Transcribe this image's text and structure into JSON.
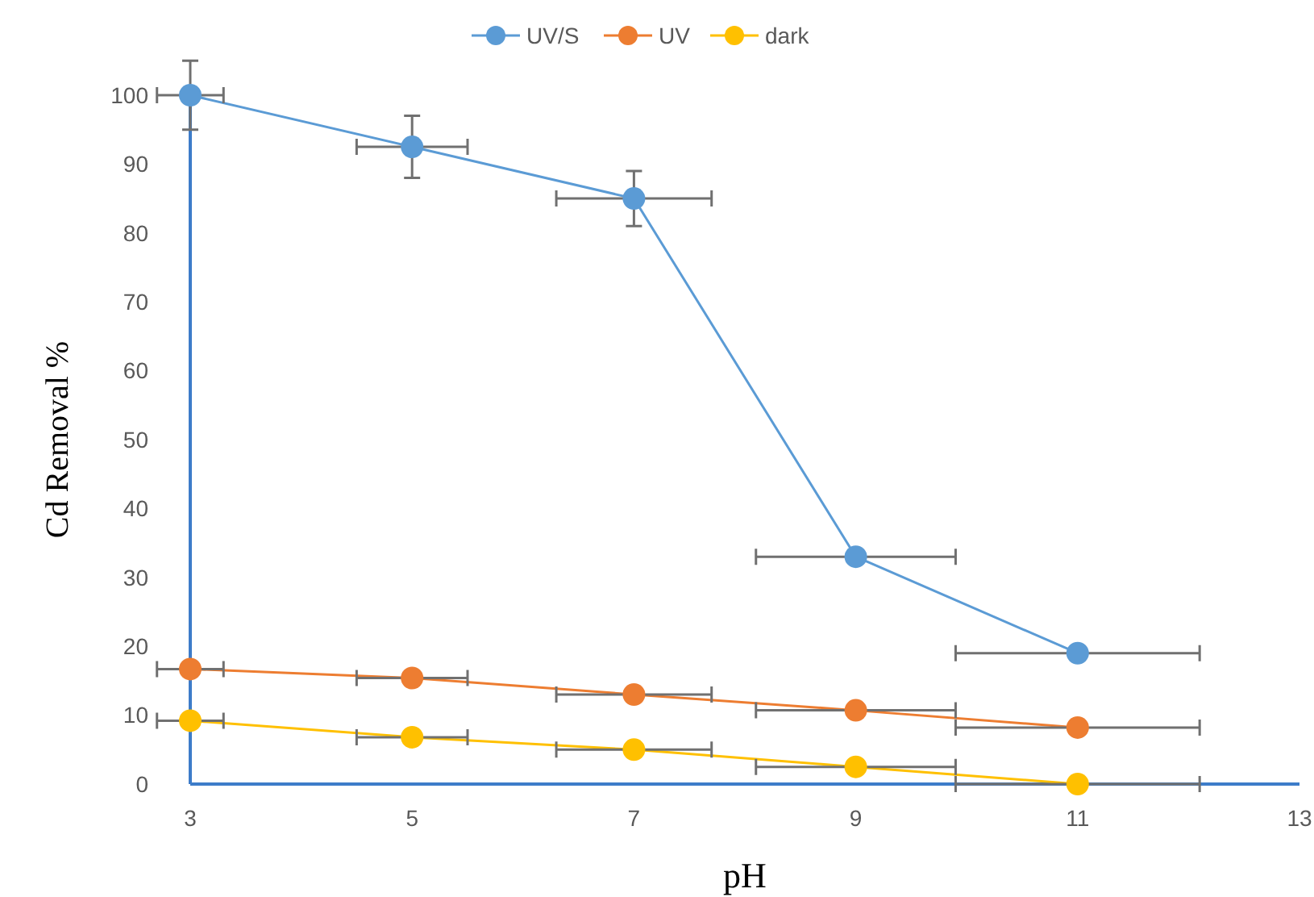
{
  "chart_data": {
    "type": "line",
    "xlabel": "pH",
    "ylabel": "Cd Removal %",
    "x": [
      3,
      5,
      7,
      9,
      11
    ],
    "series": [
      {
        "name": "UV/S",
        "color": "#5b9bd5",
        "values": [
          100,
          92.5,
          85,
          33,
          19
        ],
        "errors": [
          5,
          4.5,
          4,
          null,
          null
        ],
        "xerrors": [
          0.3,
          0.5,
          0.7,
          0.9,
          1.1
        ]
      },
      {
        "name": "UV",
        "color": "#ed7d31",
        "values": [
          16.7,
          15.4,
          13,
          10.7,
          8.2
        ],
        "xerrors": [
          0.3,
          0.5,
          0.7,
          0.9,
          1.1
        ]
      },
      {
        "name": "dark",
        "color": "#ffc000",
        "values": [
          9.2,
          6.8,
          5,
          2.5,
          0
        ],
        "xerrors": [
          0.3,
          0.5,
          0.7,
          0.9,
          1.1
        ]
      }
    ],
    "xlim": [
      3,
      13
    ],
    "xticks": [
      3,
      5,
      7,
      9,
      11,
      13
    ],
    "ylim": [
      0,
      100
    ],
    "yticks": [
      0,
      10,
      20,
      30,
      40,
      50,
      60,
      70,
      80,
      90,
      100
    ],
    "grid": false,
    "legend": "top",
    "marker": "circle",
    "line_style": "solid"
  }
}
